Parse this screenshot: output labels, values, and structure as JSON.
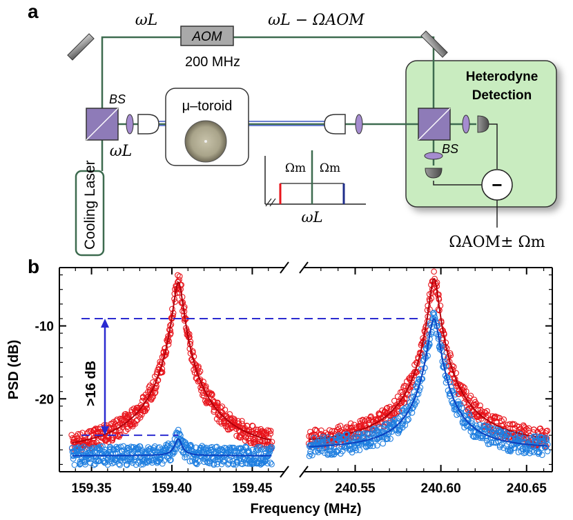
{
  "panel_a": {
    "label": "a",
    "omega_L_top": "ωL",
    "omega_L_minus_AOM": "ωL − ΩAOM",
    "aom_label": "AOM",
    "aom_freq": "200 MHz",
    "bs_left": "BS",
    "bs_right": "BS",
    "omega_L_left": "ωL",
    "toroid_label": "μ–toroid",
    "heterodyne_line1": "Heterodyne",
    "heterodyne_line2": "Detection",
    "cooling_laser": "Cooling Laser",
    "minus_sign": "−",
    "spectrum_left_label": "Ωm",
    "spectrum_right_label": "Ωm",
    "spectrum_axis_label": "ωL",
    "output_label": "ΩAOM± Ωm",
    "colors": {
      "beam": "#3d6b4f",
      "heterodyne_fill": "#c9ecc0",
      "splitter": "#8e7bb8",
      "lens": "#a58ccf",
      "detector": "#6b6b6b",
      "red_line": "#e8141b",
      "blue_line": "#1f2d8a"
    }
  },
  "panel_b": {
    "label": "b",
    "annotation": ">16 dB",
    "chart_data": {
      "type": "scatter",
      "ylabel": "PSD (dB)",
      "xlabel": "Frequency (MHz)",
      "ylim": [
        -30,
        -2
      ],
      "y_ticks": [
        -10,
        -20
      ],
      "y_tick_labels": [
        "-10",
        "-20"
      ],
      "x_ticks_left": [
        159.35,
        159.4,
        159.45
      ],
      "x_tick_labels_left": [
        "159.35",
        "159.40",
        "159.45"
      ],
      "x_ticks_right": [
        240.55,
        240.6,
        240.65
      ],
      "x_tick_labels_right": [
        "240.55",
        "240.60",
        "240.65"
      ],
      "xlim_left": [
        159.33,
        159.47
      ],
      "xlim_right": [
        240.52,
        240.665
      ],
      "series": [
        {
          "color": "#e8141b",
          "segment": "left",
          "center": 159.404,
          "peak": -4,
          "floor": -27.5,
          "gamma": 0.0028
        },
        {
          "color": "#1f7fe0",
          "segment": "left",
          "center": 159.404,
          "peak": -25.5,
          "floor": -27.8,
          "gamma": 0.0025
        },
        {
          "color": "#e8141b",
          "segment": "right",
          "center": 240.596,
          "peak": -3.5,
          "floor": -26.5,
          "gamma": 0.0025
        },
        {
          "color": "#1f7fe0",
          "segment": "right",
          "center": 240.596,
          "peak": -9,
          "floor": -27,
          "gamma": 0.003
        }
      ],
      "reference_lines_db": [
        -9,
        -25
      ]
    }
  }
}
